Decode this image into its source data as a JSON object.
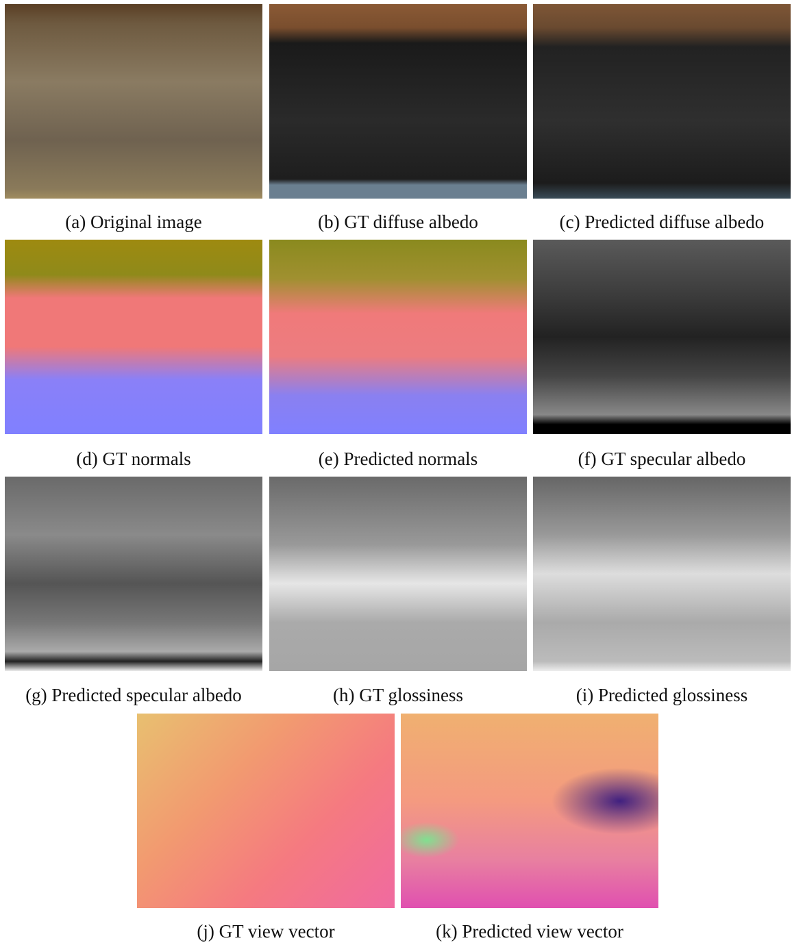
{
  "panels": [
    {
      "caption": "(a) Original image"
    },
    {
      "caption": "(b) GT diffuse albedo"
    },
    {
      "caption": "(c) Predicted diffuse albedo"
    },
    {
      "caption": "(d) GT normals"
    },
    {
      "caption": "(e) Predicted normals"
    },
    {
      "caption": "(f) GT specular albedo"
    },
    {
      "caption": "(g) Predicted specular albedo"
    },
    {
      "caption": "(h) GT glossiness"
    },
    {
      "caption": "(i) Predicted glossiness"
    },
    {
      "caption": "(j) GT view vector"
    },
    {
      "caption": "(k) Predicted view vector"
    }
  ]
}
